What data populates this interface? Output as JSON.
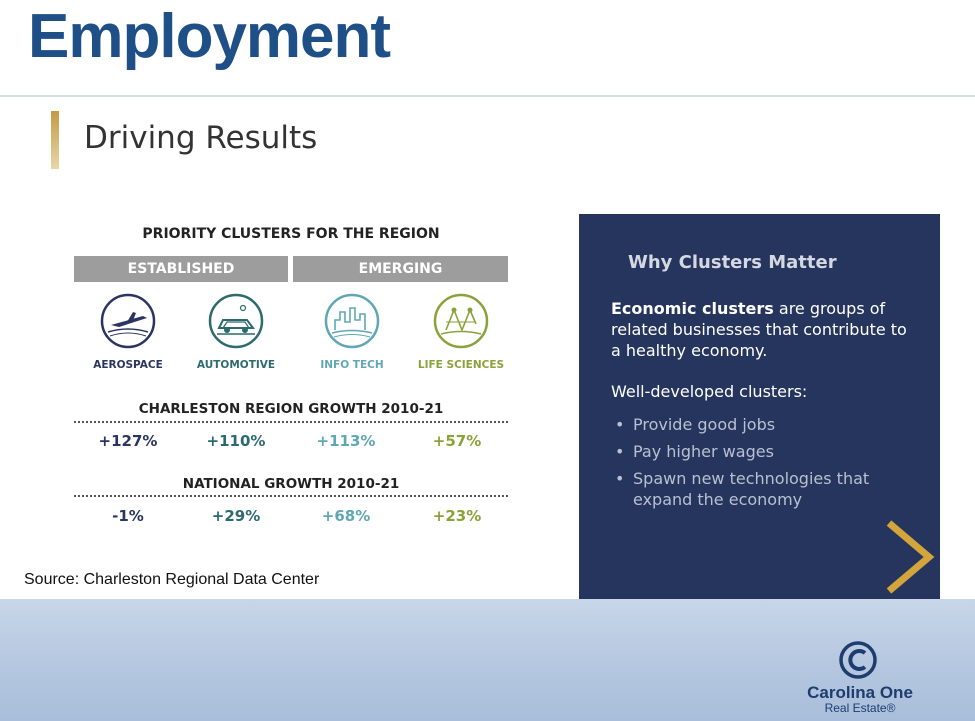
{
  "slide": {
    "title": "Employment",
    "subtitle": "Driving Results",
    "source": "Source:  Charleston Regional Data Center"
  },
  "infographic": {
    "heading": "PRIORITY CLUSTERS FOR THE REGION",
    "categories": [
      "ESTABLISHED",
      "EMERGING"
    ],
    "clusters": [
      {
        "label": "AEROSPACE",
        "icon": "airplane-icon",
        "color": "#2b3562"
      },
      {
        "label": "AUTOMOTIVE",
        "icon": "car-icon",
        "color": "#2c6a6e"
      },
      {
        "label": "INFO TECH",
        "icon": "city-skyline-icon",
        "color": "#5fa8b3"
      },
      {
        "label": "LIFE SCIENCES",
        "icon": "molecule-icon",
        "color": "#8aa23a"
      }
    ],
    "regional_growth": {
      "heading": "CHARLESTON REGION GROWTH 2010-21",
      "values": [
        "+127%",
        "+110%",
        "+113%",
        "+57%"
      ]
    },
    "national_growth": {
      "heading": "NATIONAL GROWTH 2010-21",
      "values": [
        "-1%",
        "+29%",
        "+68%",
        "+23%"
      ]
    }
  },
  "panel": {
    "title": "Why Clusters Matter",
    "desc_bold": "Economic clusters",
    "desc_rest": " are groups of related businesses that contribute to a healthy economy.",
    "list_heading": "Well-developed clusters:",
    "items": [
      "Provide good jobs",
      "Pay higher wages",
      "Spawn new technologies that expand the economy"
    ],
    "arrow_icon": "chevron-right-icon"
  },
  "logo": {
    "mark": "©",
    "name": "Carolina One",
    "sub": "Real Estate®"
  },
  "colors": {
    "title": "#1e4f87",
    "panel_bg": "#25355e",
    "accent_gold": "#d4a53a",
    "category_bar": "#9d9d9d"
  }
}
